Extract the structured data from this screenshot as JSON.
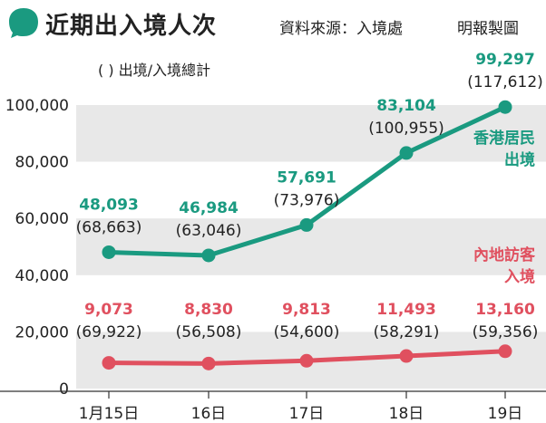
{
  "header": {
    "title": "近期出入境人次",
    "source": "資料來源：入境處",
    "credit": "明報製圖",
    "accent_color": "#1a9a80"
  },
  "chart_data": {
    "type": "line",
    "note": "(   )  出境/入境總計",
    "categories": [
      "1月15日",
      "16日",
      "17日",
      "18日",
      "19日"
    ],
    "ylim": [
      0,
      100000
    ],
    "yticks": [
      "0",
      "20,000",
      "40,000",
      "60,000",
      "80,000",
      "100,000"
    ],
    "series": [
      {
        "name_lines": [
          "香港居民",
          "出境"
        ],
        "color": "#1a9a80",
        "values": [
          48093,
          46984,
          57691,
          83104,
          99297
        ],
        "value_labels": [
          "48,093",
          "46,984",
          "57,691",
          "83,104",
          "99,297"
        ],
        "totals": [
          "(68,663)",
          "(63,046)",
          "(73,976)",
          "(100,955)",
          "(117,612)"
        ]
      },
      {
        "name_lines": [
          "內地訪客",
          "入境"
        ],
        "color": "#e0505f",
        "values": [
          9073,
          8830,
          9813,
          11493,
          13160
        ],
        "value_labels": [
          "9,073",
          "8,830",
          "9,813",
          "11,493",
          "13,160"
        ],
        "totals": [
          "(69,922)",
          "(56,508)",
          "(54,600)",
          "(58,291)",
          "(59,356)"
        ]
      }
    ],
    "band_color": "#e8e8e8"
  }
}
